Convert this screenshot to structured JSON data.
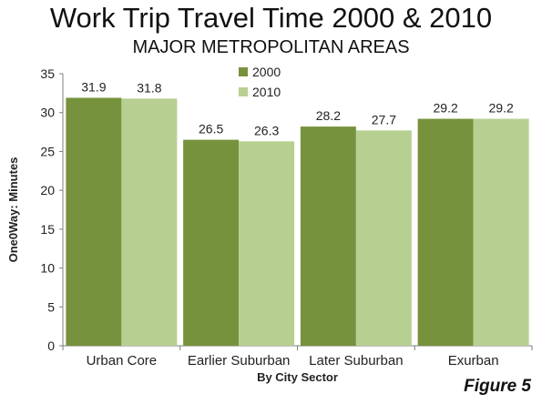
{
  "chart_data": {
    "type": "bar",
    "title": "Work Trip Travel Time 2000 & 2010",
    "subtitle": "MAJOR METROPOLITAN AREAS",
    "xlabel": "By City Sector",
    "ylabel": "One0Way: Minutes",
    "categories": [
      "Urban Core",
      "Earlier Suburban",
      "Later Suburban",
      "Exurban"
    ],
    "series": [
      {
        "name": "2000",
        "values": [
          31.9,
          26.5,
          28.2,
          29.2
        ],
        "color": "#76923c"
      },
      {
        "name": "2010",
        "values": [
          31.8,
          26.3,
          27.7,
          29.2
        ],
        "color": "#b8cf92"
      }
    ],
    "ylim": [
      0,
      35
    ],
    "yticks": [
      "0",
      "5",
      "10",
      "15",
      "20",
      "25",
      "30",
      "35"
    ],
    "grid": false,
    "legend": "top-center",
    "data_labels": true
  },
  "figure_label": "Figure 5"
}
